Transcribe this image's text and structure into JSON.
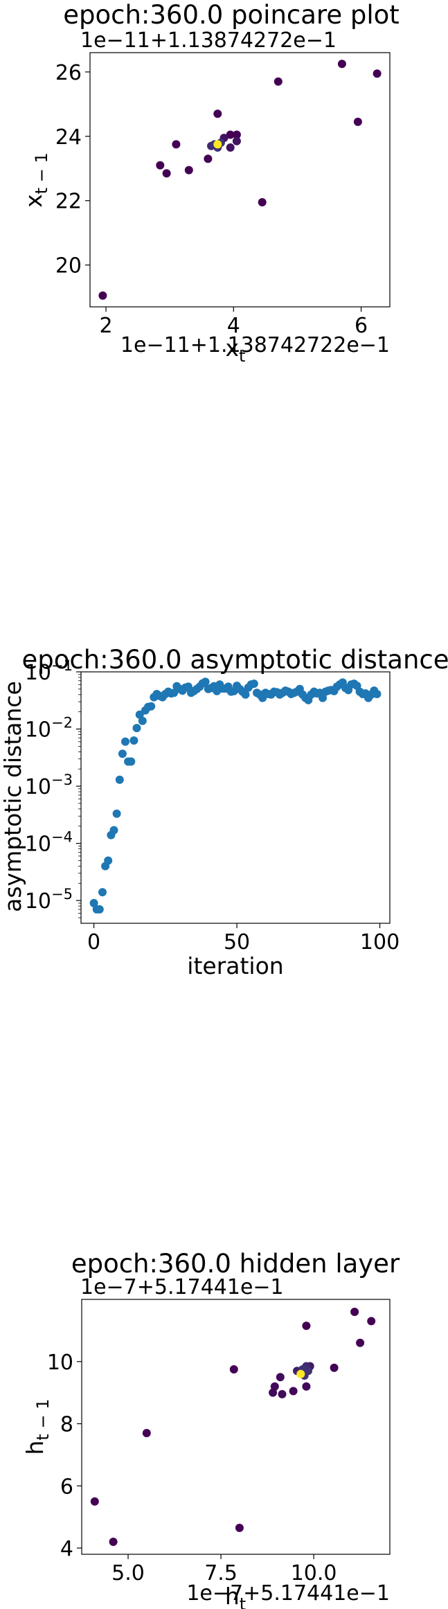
{
  "chart_data": [
    {
      "type": "scatter",
      "title": "epoch:360.0 poincare plot",
      "xlabel": "x_t",
      "ylabel": "x_{t-1}",
      "x_offset_text": "1e−11+1.138742722e−1",
      "y_offset_text": "1e−11+1.13874272e−1",
      "xlim": [
        1.75,
        6.45
      ],
      "ylim": [
        18.7,
        26.6
      ],
      "x_ticks": [
        2,
        4,
        6
      ],
      "y_ticks": [
        20,
        22,
        24,
        26
      ],
      "grid": false,
      "colormap": "viridis",
      "colors": {
        "low": "#440154",
        "mid": "#3b528b",
        "high": "#fde725"
      },
      "points": [
        {
          "x": 1.95,
          "y": 19.05,
          "c": 0
        },
        {
          "x": 2.85,
          "y": 23.1,
          "c": 0
        },
        {
          "x": 2.95,
          "y": 22.85,
          "c": 0
        },
        {
          "x": 3.1,
          "y": 23.75,
          "c": 0
        },
        {
          "x": 3.3,
          "y": 22.95,
          "c": 0
        },
        {
          "x": 3.6,
          "y": 23.3,
          "c": 0
        },
        {
          "x": 3.65,
          "y": 23.7,
          "c": 0.25
        },
        {
          "x": 3.7,
          "y": 23.75,
          "c": 0.3
        },
        {
          "x": 3.75,
          "y": 23.65,
          "c": 0.3
        },
        {
          "x": 3.8,
          "y": 23.8,
          "c": 0.3
        },
        {
          "x": 3.75,
          "y": 24.7,
          "c": 0
        },
        {
          "x": 3.85,
          "y": 23.95,
          "c": 0.1
        },
        {
          "x": 3.95,
          "y": 23.65,
          "c": 0.1
        },
        {
          "x": 3.95,
          "y": 24.05,
          "c": 0
        },
        {
          "x": 4.05,
          "y": 23.85,
          "c": 0.1
        },
        {
          "x": 4.05,
          "y": 24.05,
          "c": 0
        },
        {
          "x": 4.45,
          "y": 21.95,
          "c": 0
        },
        {
          "x": 4.7,
          "y": 25.7,
          "c": 0
        },
        {
          "x": 5.7,
          "y": 26.25,
          "c": 0
        },
        {
          "x": 5.95,
          "y": 24.45,
          "c": 0
        },
        {
          "x": 6.25,
          "y": 25.95,
          "c": 0
        },
        {
          "x": 3.75,
          "y": 23.75,
          "c": 1
        }
      ]
    },
    {
      "type": "scatter",
      "title": "epoch:360.0 asymptotic distance",
      "xlabel": "iteration",
      "ylabel": "asymptotic distance",
      "yscale": "log",
      "xlim": [
        -4.5,
        103.5
      ],
      "ylim": [
        4e-06,
        0.1
      ],
      "x_ticks": [
        0,
        50,
        100
      ],
      "y_ticks": [
        1e-05,
        0.0001,
        0.001,
        0.01,
        0.1
      ],
      "y_tick_labels": [
        {
          "base": "10",
          "exp": "−5"
        },
        {
          "base": "10",
          "exp": "−4"
        },
        {
          "base": "10",
          "exp": "−3"
        },
        {
          "base": "10",
          "exp": "−2"
        },
        {
          "base": "10",
          "exp": "−1"
        }
      ],
      "grid": false,
      "color": "#1f77b4",
      "x": [
        0,
        1,
        2,
        3,
        4,
        5,
        6,
        7,
        8,
        9,
        10,
        11,
        12,
        13,
        14,
        15,
        16,
        17,
        18,
        19,
        20,
        21,
        22,
        23,
        24,
        25,
        26,
        27,
        28,
        29,
        30,
        31,
        32,
        33,
        34,
        35,
        36,
        37,
        38,
        39,
        40,
        41,
        42,
        43,
        44,
        45,
        46,
        47,
        48,
        49,
        50,
        51,
        52,
        53,
        54,
        55,
        56,
        57,
        58,
        59,
        60,
        61,
        62,
        63,
        64,
        65,
        66,
        67,
        68,
        69,
        70,
        71,
        72,
        73,
        74,
        75,
        76,
        77,
        78,
        79,
        80,
        81,
        82,
        83,
        84,
        85,
        86,
        87,
        88,
        89,
        90,
        91,
        92,
        93,
        94,
        95,
        96,
        97,
        98,
        99
      ],
      "y": [
        9e-06,
        7e-06,
        7e-06,
        1.4e-05,
        4e-05,
        5e-05,
        0.00014,
        0.00017,
        0.00033,
        0.0013,
        0.0037,
        0.006,
        0.0027,
        0.0027,
        0.0063,
        0.0104,
        0.0179,
        0.0139,
        0.0212,
        0.0244,
        0.025,
        0.036,
        0.041,
        0.038,
        0.036,
        0.041,
        0.045,
        0.042,
        0.043,
        0.056,
        0.05,
        0.047,
        0.053,
        0.055,
        0.043,
        0.046,
        0.05,
        0.055,
        0.063,
        0.067,
        0.05,
        0.052,
        0.056,
        0.046,
        0.06,
        0.051,
        0.051,
        0.055,
        0.045,
        0.046,
        0.057,
        0.05,
        0.045,
        0.04,
        0.053,
        0.06,
        0.062,
        0.043,
        0.04,
        0.035,
        0.043,
        0.041,
        0.04,
        0.045,
        0.044,
        0.04,
        0.043,
        0.047,
        0.045,
        0.041,
        0.043,
        0.045,
        0.05,
        0.04,
        0.035,
        0.032,
        0.04,
        0.045,
        0.042,
        0.043,
        0.035,
        0.045,
        0.047,
        0.048,
        0.046,
        0.055,
        0.06,
        0.065,
        0.052,
        0.048,
        0.06,
        0.062,
        0.057,
        0.045,
        0.041,
        0.042,
        0.035,
        0.04,
        0.047,
        0.041
      ]
    },
    {
      "type": "scatter",
      "title": "epoch:360.0 hidden layer",
      "xlabel": "h_t",
      "ylabel": "h_{t-1}",
      "x_offset_text": "1e−7+5.17441e−1",
      "y_offset_text": "1e−7+5.17441e−1",
      "xlim": [
        3.75,
        12.05
      ],
      "ylim": [
        3.8,
        12.0
      ],
      "x_ticks": [
        5.0,
        7.5,
        10.0
      ],
      "x_tick_labels": [
        "5.0",
        "7.5",
        "10.0"
      ],
      "y_ticks": [
        4,
        6,
        8,
        10
      ],
      "grid": false,
      "colormap": "viridis",
      "colors": {
        "low": "#440154",
        "mid": "#3b528b",
        "high": "#fde725"
      },
      "points": [
        {
          "x": 4.1,
          "y": 5.5,
          "c": 0
        },
        {
          "x": 4.6,
          "y": 4.2,
          "c": 0
        },
        {
          "x": 5.5,
          "y": 7.7,
          "c": 0
        },
        {
          "x": 7.85,
          "y": 9.75,
          "c": 0
        },
        {
          "x": 8.0,
          "y": 4.65,
          "c": 0
        },
        {
          "x": 8.9,
          "y": 9.0,
          "c": 0.05
        },
        {
          "x": 8.95,
          "y": 9.2,
          "c": 0.05
        },
        {
          "x": 9.1,
          "y": 9.5,
          "c": 0.05
        },
        {
          "x": 9.15,
          "y": 8.95,
          "c": 0.05
        },
        {
          "x": 9.45,
          "y": 9.05,
          "c": 0.05
        },
        {
          "x": 9.55,
          "y": 9.7,
          "c": 0.2
        },
        {
          "x": 9.7,
          "y": 9.75,
          "c": 0.3
        },
        {
          "x": 9.75,
          "y": 9.55,
          "c": 0.3
        },
        {
          "x": 9.8,
          "y": 9.85,
          "c": 0.25
        },
        {
          "x": 9.85,
          "y": 9.7,
          "c": 0.3
        },
        {
          "x": 9.9,
          "y": 9.85,
          "c": 0.15
        },
        {
          "x": 9.8,
          "y": 9.2,
          "c": 0.05
        },
        {
          "x": 9.8,
          "y": 11.15,
          "c": 0
        },
        {
          "x": 10.55,
          "y": 9.8,
          "c": 0
        },
        {
          "x": 11.1,
          "y": 11.6,
          "c": 0
        },
        {
          "x": 11.25,
          "y": 10.6,
          "c": 0
        },
        {
          "x": 11.55,
          "y": 11.3,
          "c": 0
        },
        {
          "x": 9.65,
          "y": 9.6,
          "c": 1
        }
      ]
    }
  ]
}
